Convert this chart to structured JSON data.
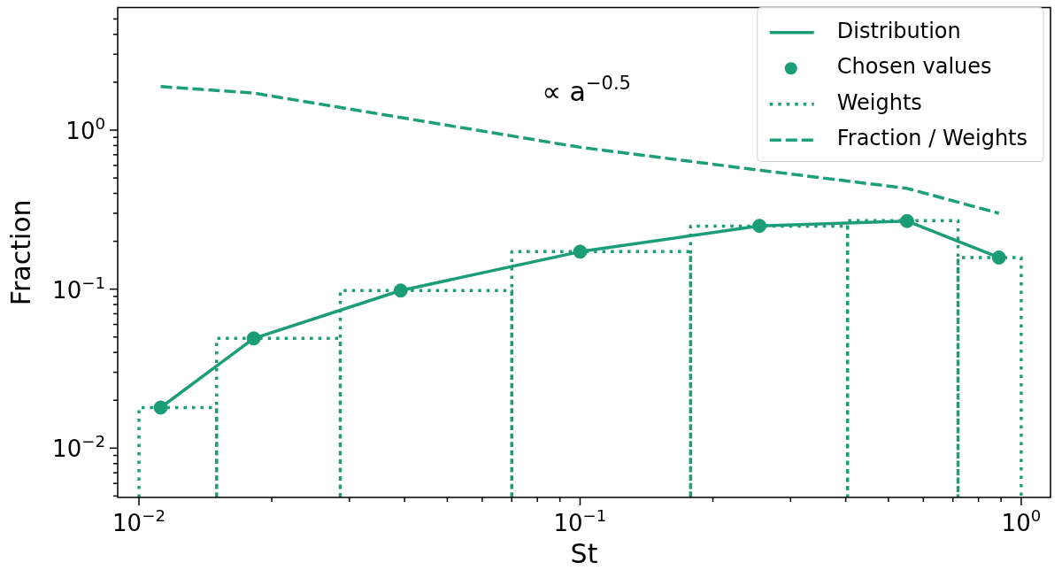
{
  "chart_data": {
    "type": "line",
    "xlabel": "St",
    "ylabel": "Fraction",
    "annotations": [
      "∝ a$^{−0.5}$"
    ],
    "series": [
      {
        "name": "Distribution",
        "type": "line",
        "color": "#1b9e77",
        "line_style": "solid",
        "marker": "none",
        "x": [
          0.0112,
          0.0182,
          0.0392,
          0.1,
          0.255,
          0.551,
          0.89
        ],
        "values": [
          0.018,
          0.049,
          0.098,
          0.172,
          0.25,
          0.268,
          0.158
        ]
      },
      {
        "name": "Chosen values",
        "type": "scatter",
        "color": "#1a9d76",
        "marker": "circle",
        "x": [
          0.0112,
          0.0182,
          0.0392,
          0.1,
          0.255,
          0.551,
          0.89
        ],
        "values": [
          0.018,
          0.049,
          0.098,
          0.172,
          0.25,
          0.268,
          0.158
        ]
      },
      {
        "name": "Weights",
        "type": "histogram",
        "color": "#1c9f78",
        "line_style": "dotted",
        "bins": [
          0.01,
          0.015,
          0.0286,
          0.07,
          0.178,
          0.404,
          0.719,
          1.0
        ],
        "values": [
          0.018,
          0.049,
          0.098,
          0.172,
          0.249,
          0.27,
          0.158
        ]
      },
      {
        "name": "Fraction / Weights",
        "type": "line",
        "color": "#1d9f79",
        "line_style": "dashed",
        "marker": "none",
        "x": [
          0.0112,
          0.0182,
          0.0392,
          0.1,
          0.255,
          0.551,
          0.89
        ],
        "values": [
          1.88,
          1.71,
          1.2,
          0.78,
          0.56,
          0.43,
          0.3
        ]
      }
    ],
    "log": "xy",
    "grid": false,
    "legend": "top right",
    "xlim": [
      0.00895,
      1.165
    ],
    "xticks": [
      {
        "value": 0.01,
        "label": "10$^{−2}$"
      },
      {
        "value": 0.02,
        "label": null
      },
      {
        "value": 0.03,
        "label": null
      },
      {
        "value": 0.04,
        "label": null
      },
      {
        "value": 0.05,
        "label": null
      },
      {
        "value": 0.06,
        "label": null
      },
      {
        "value": 0.07,
        "label": null
      },
      {
        "value": 0.08,
        "label": null
      },
      {
        "value": 0.09,
        "label": null
      },
      {
        "value": 0.1,
        "label": "10$^{−1}$"
      },
      {
        "value": 0.2,
        "label": null
      },
      {
        "value": 0.3,
        "label": null
      },
      {
        "value": 0.4,
        "label": null
      },
      {
        "value": 0.5,
        "label": null
      },
      {
        "value": 0.6,
        "label": null
      },
      {
        "value": 0.7,
        "label": null
      },
      {
        "value": 0.8,
        "label": null
      },
      {
        "value": 0.9,
        "label": null
      },
      {
        "value": 1,
        "label": "10$^{0}$"
      }
    ],
    "ylim": [
      0.0049,
      5.9
    ],
    "yticks": [
      {
        "value": 0.005,
        "label": null
      },
      {
        "value": 0.006,
        "label": null
      },
      {
        "value": 0.007,
        "label": null
      },
      {
        "value": 0.008,
        "label": null
      },
      {
        "value": 0.009,
        "label": null
      },
      {
        "value": 0.01,
        "label": "10$^{−2}$"
      },
      {
        "value": 0.02,
        "label": null
      },
      {
        "value": 0.03,
        "label": null
      },
      {
        "value": 0.04,
        "label": null
      },
      {
        "value": 0.05,
        "label": null
      },
      {
        "value": 0.06,
        "label": null
      },
      {
        "value": 0.07,
        "label": null
      },
      {
        "value": 0.08,
        "label": null
      },
      {
        "value": 0.09,
        "label": null
      },
      {
        "value": 0.1,
        "label": "10$^{−1}$"
      },
      {
        "value": 0.2,
        "label": null
      },
      {
        "value": 0.3,
        "label": null
      },
      {
        "value": 0.4,
        "label": null
      },
      {
        "value": 0.5,
        "label": null
      },
      {
        "value": 0.6,
        "label": null
      },
      {
        "value": 0.7,
        "label": null
      },
      {
        "value": 0.8,
        "label": null
      },
      {
        "value": 0.9,
        "label": null
      },
      {
        "value": 1,
        "label": "10$^{0}$"
      },
      {
        "value": 2,
        "label": null
      },
      {
        "value": 3,
        "label": null
      },
      {
        "value": 4,
        "label": null
      },
      {
        "value": 5,
        "label": null
      }
    ]
  }
}
